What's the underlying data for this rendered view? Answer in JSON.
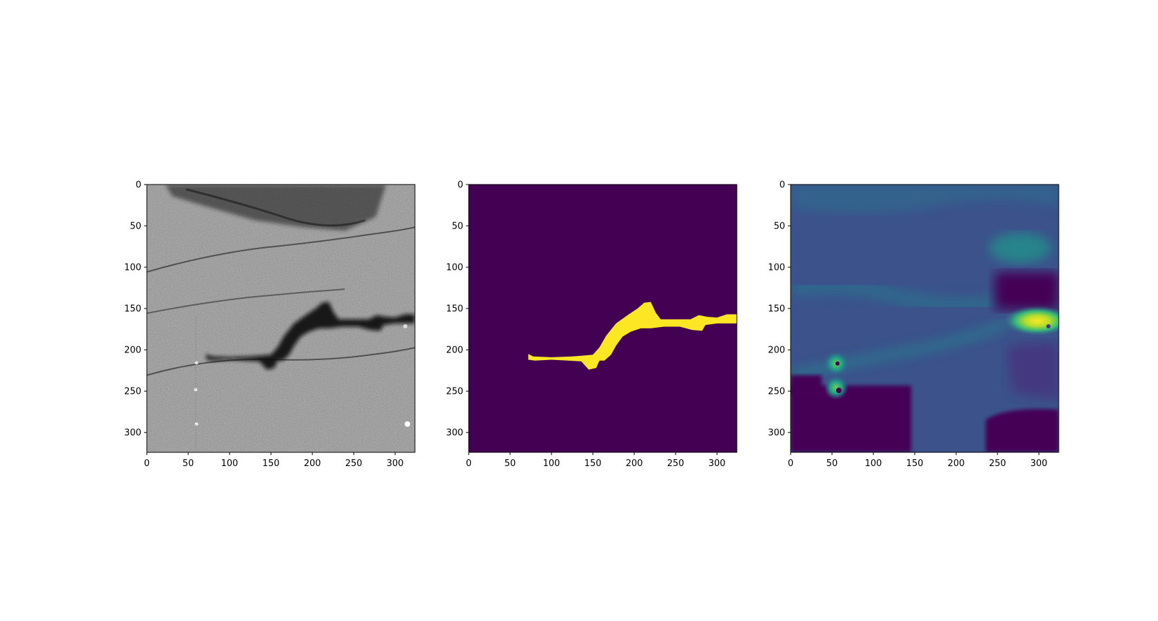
{
  "chart_data": [
    {
      "type": "heatmap",
      "image": "grayscale SAR image of sea surface with dark oil-slick-like streak",
      "colormap": "gray",
      "image_size": [
        324,
        324
      ],
      "xlim": [
        0,
        324
      ],
      "ylim": [
        324,
        0
      ],
      "xticks": [
        0,
        50,
        100,
        150,
        200,
        250,
        300
      ],
      "yticks": [
        0,
        50,
        100,
        150,
        200,
        250,
        300
      ],
      "xtick_labels": [
        "0",
        "50",
        "100",
        "150",
        "200",
        "250",
        "300"
      ],
      "ytick_labels": [
        "0",
        "50",
        "100",
        "150",
        "200",
        "250",
        "300"
      ],
      "grid": false
    },
    {
      "type": "heatmap",
      "image": "binary segmentation mask, yellow region on purple background",
      "colormap": "viridis",
      "colors": {
        "background": "#440154",
        "foreground": "#fde725"
      },
      "mask_polygon": [
        [
          72,
          205
        ],
        [
          78,
          208
        ],
        [
          100,
          209
        ],
        [
          125,
          208
        ],
        [
          138,
          207
        ],
        [
          150,
          206
        ],
        [
          158,
          197
        ],
        [
          166,
          183
        ],
        [
          178,
          168
        ],
        [
          192,
          158
        ],
        [
          204,
          150
        ],
        [
          212,
          143
        ],
        [
          220,
          142
        ],
        [
          226,
          155
        ],
        [
          232,
          163
        ],
        [
          248,
          163
        ],
        [
          268,
          163
        ],
        [
          278,
          158
        ],
        [
          288,
          160
        ],
        [
          300,
          161
        ],
        [
          312,
          157
        ],
        [
          324,
          157
        ],
        [
          324,
          168
        ],
        [
          300,
          168
        ],
        [
          286,
          170
        ],
        [
          282,
          177
        ],
        [
          270,
          176
        ],
        [
          255,
          172
        ],
        [
          236,
          172
        ],
        [
          220,
          174
        ],
        [
          208,
          174
        ],
        [
          196,
          178
        ],
        [
          186,
          184
        ],
        [
          178,
          195
        ],
        [
          172,
          206
        ],
        [
          164,
          213
        ],
        [
          158,
          213
        ],
        [
          154,
          222
        ],
        [
          145,
          224
        ],
        [
          136,
          214
        ],
        [
          120,
          213
        ],
        [
          100,
          212
        ],
        [
          80,
          213
        ],
        [
          72,
          212
        ]
      ],
      "image_size": [
        324,
        324
      ],
      "xlim": [
        0,
        324
      ],
      "ylim": [
        324,
        0
      ],
      "xticks": [
        0,
        50,
        100,
        150,
        200,
        250,
        300
      ],
      "yticks": [
        0,
        50,
        100,
        150,
        200,
        250,
        300
      ],
      "xtick_labels": [
        "0",
        "50",
        "100",
        "150",
        "200",
        "250",
        "300"
      ],
      "ytick_labels": [
        "0",
        "50",
        "100",
        "150",
        "200",
        "250",
        "300"
      ],
      "grid": false
    },
    {
      "type": "heatmap",
      "image": "continuous prediction map in viridis colormap",
      "colormap": "viridis",
      "hotspots": [
        {
          "x": 295,
          "y": 162,
          "level": "high"
        },
        {
          "x": 58,
          "y": 215,
          "level": "medium"
        },
        {
          "x": 58,
          "y": 247,
          "level": "medium"
        }
      ],
      "low_regions": [
        "bottom-left block",
        "bottom-right block",
        "right side near y=120"
      ],
      "image_size": [
        324,
        324
      ],
      "xlim": [
        0,
        324
      ],
      "ylim": [
        324,
        0
      ],
      "xticks": [
        0,
        50,
        100,
        150,
        200,
        250,
        300
      ],
      "yticks": [
        0,
        50,
        100,
        150,
        200,
        250,
        300
      ],
      "xtick_labels": [
        "0",
        "50",
        "100",
        "150",
        "200",
        "250",
        "300"
      ],
      "ytick_labels": [
        "0",
        "50",
        "100",
        "150",
        "200",
        "250",
        "300"
      ],
      "grid": false
    }
  ]
}
